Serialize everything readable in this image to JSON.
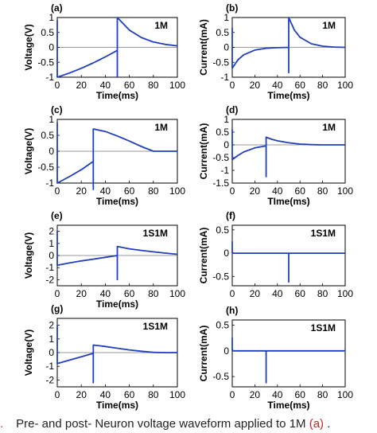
{
  "caption": {
    "fig_mark": ".",
    "text": "Pre- and post- Neuron voltage waveform applied to 1M",
    "ref": "(a)",
    "tail": " ."
  },
  "colors": {
    "line": "#1f3fbf",
    "zero_line": "#777777",
    "accent": "#c0282d"
  },
  "chart_data": [
    {
      "type": "line",
      "panel": "(a)",
      "legend": "1M",
      "xlabel": "Time(ms)",
      "ylabel": "Voltage(V)",
      "xlim": [
        0,
        100
      ],
      "ylim": [
        -1,
        1
      ],
      "xticks": [
        "0",
        "20",
        "40",
        "60",
        "80",
        "100"
      ],
      "yticks": [
        "-1",
        "-0.5",
        "0",
        "0.5",
        "1"
      ],
      "series": [
        {
          "x": [
            0,
            0,
            0,
            10,
            20,
            30,
            40,
            50,
            50,
            50,
            60,
            70,
            80,
            90,
            100
          ],
          "y": [
            0,
            0.9,
            -1,
            -0.86,
            -0.7,
            -0.52,
            -0.32,
            -0.1,
            -1,
            1,
            0.58,
            0.33,
            0.18,
            0.1,
            0.05
          ]
        }
      ]
    },
    {
      "type": "line",
      "panel": "(b)",
      "legend": "1M",
      "xlabel": "Time(ms)",
      "ylabel": "Current(mA)",
      "xlim": [
        0,
        100
      ],
      "ylim": [
        -1,
        1
      ],
      "xticks": [
        "0",
        "20",
        "40",
        "60",
        "80",
        "100"
      ],
      "yticks": [
        "-1",
        "-0.5",
        "0",
        "0.5",
        "1"
      ],
      "series": [
        {
          "x": [
            0,
            0,
            0,
            5,
            10,
            20,
            30,
            40,
            50,
            50,
            50,
            55,
            60,
            70,
            80,
            90,
            100
          ],
          "y": [
            0,
            0.65,
            -0.7,
            -0.42,
            -0.25,
            -0.09,
            -0.03,
            -0.01,
            0,
            -0.85,
            1,
            0.58,
            0.34,
            0.12,
            0.04,
            0.01,
            0
          ]
        }
      ]
    },
    {
      "type": "line",
      "panel": "(c)",
      "legend": "1M",
      "xlabel": "Time(ms)",
      "ylabel": "Voltage(V)",
      "xlim": [
        0,
        100
      ],
      "ylim": [
        -1,
        1
      ],
      "xticks": [
        "0",
        "20",
        "40",
        "60",
        "80",
        "100"
      ],
      "yticks": [
        "-1",
        "-0.5",
        "0",
        "0.5",
        "1"
      ],
      "series": [
        {
          "x": [
            0,
            0,
            0,
            10,
            20,
            30,
            30,
            30,
            40,
            50,
            60,
            70,
            80,
            90,
            100
          ],
          "y": [
            0,
            0.9,
            -1,
            -0.8,
            -0.58,
            -0.32,
            -1.2,
            0.7,
            0.62,
            0.48,
            0.32,
            0.15,
            0,
            0,
            0
          ]
        }
      ]
    },
    {
      "type": "line",
      "panel": "(d)",
      "legend": "1M",
      "xlabel": "TIme(ms)",
      "ylabel": "Current(mA)",
      "xlim": [
        0,
        100
      ],
      "ylim": [
        -1.5,
        1
      ],
      "xticks": [
        "0",
        "20",
        "40",
        "60",
        "80",
        "100"
      ],
      "yticks": [
        "-1.5",
        "-1",
        "-0.5",
        "0",
        "0.5",
        "1"
      ],
      "series": [
        {
          "x": [
            0,
            0,
            0,
            5,
            10,
            20,
            30,
            30,
            30,
            35,
            40,
            50,
            60,
            70,
            80,
            90,
            100
          ],
          "y": [
            0,
            0.6,
            -0.58,
            -0.42,
            -0.28,
            -0.12,
            -0.04,
            -1.25,
            0.3,
            0.22,
            0.16,
            0.08,
            0.03,
            0.01,
            0,
            0,
            0
          ]
        }
      ]
    },
    {
      "type": "line",
      "panel": "(e)",
      "legend": "1S1M",
      "xlabel": "Time(ms)",
      "ylabel": "Voltage(V)",
      "xlim": [
        0,
        100
      ],
      "ylim": [
        -2.5,
        2.5
      ],
      "xticks": [
        "0",
        "20",
        "40",
        "60",
        "80",
        "100"
      ],
      "yticks": [
        "-2",
        "-1",
        "0",
        "1",
        "2"
      ],
      "series": [
        {
          "x": [
            0,
            0,
            0,
            10,
            20,
            30,
            40,
            50,
            50,
            50,
            60,
            70,
            80,
            90,
            100
          ],
          "y": [
            0,
            2,
            -0.8,
            -0.62,
            -0.45,
            -0.3,
            -0.15,
            0,
            -2,
            0.75,
            0.55,
            0.42,
            0.3,
            0.2,
            0.1
          ]
        }
      ]
    },
    {
      "type": "line",
      "panel": "(f)",
      "legend": "1S1M",
      "xlabel": "",
      "ylabel": "Current(mA)",
      "xlim": [
        0,
        100
      ],
      "ylim": [
        -0.7,
        0.6
      ],
      "xticks": [
        "0",
        "20",
        "40",
        "60",
        "80",
        "100"
      ],
      "yticks": [
        "-0.5",
        "0",
        "0.5"
      ],
      "series": [
        {
          "x": [
            0,
            0,
            0,
            1,
            10,
            20,
            30,
            40,
            50,
            50,
            50,
            60,
            70,
            80,
            90,
            100
          ],
          "y": [
            0,
            0.25,
            0.02,
            0,
            0,
            0,
            0,
            0,
            0,
            -0.62,
            0,
            0,
            0,
            0,
            0,
            0
          ]
        }
      ]
    },
    {
      "type": "line",
      "panel": "(g)",
      "legend": "1S1M",
      "xlabel": "Time(ms)",
      "ylabel": "Voltage(V)",
      "xlim": [
        0,
        100
      ],
      "ylim": [
        -2.5,
        2.5
      ],
      "xticks": [
        "0",
        "20",
        "40",
        "60",
        "80",
        "100"
      ],
      "yticks": [
        "-2",
        "-1",
        "0",
        "1",
        "2"
      ],
      "series": [
        {
          "x": [
            0,
            0,
            0,
            10,
            20,
            30,
            30,
            30,
            40,
            50,
            60,
            70,
            80,
            90,
            100
          ],
          "y": [
            0,
            2,
            -0.8,
            -0.55,
            -0.3,
            -0.05,
            -2.2,
            0.55,
            0.45,
            0.32,
            0.2,
            0.1,
            0.02,
            0,
            0
          ]
        }
      ]
    },
    {
      "type": "line",
      "panel": "(h)",
      "legend": "1S1M",
      "xlabel": "Time(ms)",
      "ylabel": "Current(mA)",
      "xlim": [
        0,
        100
      ],
      "ylim": [
        -0.7,
        0.6
      ],
      "xticks": [
        "0",
        "20",
        "40",
        "60",
        "80",
        "100"
      ],
      "yticks": [
        "-0.5",
        "0",
        "0.5"
      ],
      "series": [
        {
          "x": [
            0,
            0,
            0,
            1,
            10,
            20,
            30,
            30,
            30,
            40,
            50,
            60,
            70,
            80,
            90,
            100
          ],
          "y": [
            0,
            0.25,
            0.02,
            0,
            0,
            0,
            0,
            -0.62,
            0,
            0,
            0,
            0,
            0,
            0,
            0,
            0
          ]
        }
      ]
    }
  ]
}
